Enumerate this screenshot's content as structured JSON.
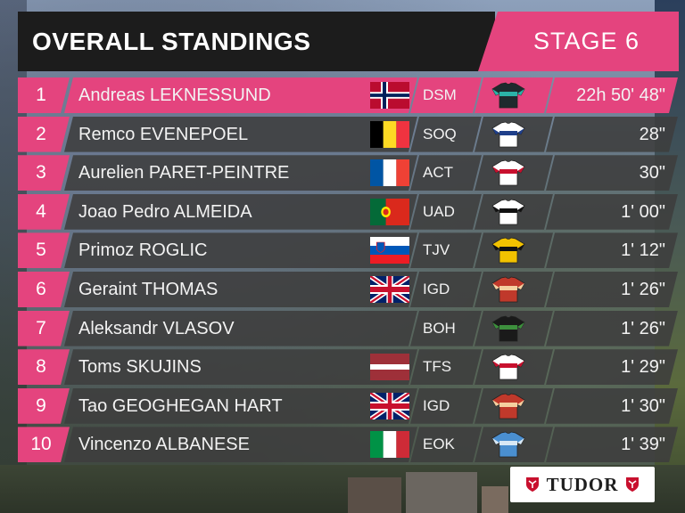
{
  "header": {
    "title": "OVERALL STANDINGS",
    "stage": "STAGE 6"
  },
  "standings": [
    {
      "pos": "1",
      "name": "Andreas LEKNESSUND",
      "flag": "norway-flag",
      "team": "DSM",
      "jersey": "dsm-jersey",
      "time": "22h 50' 48\""
    },
    {
      "pos": "2",
      "name": "Remco EVENEPOEL",
      "flag": "belgium-flag",
      "team": "SOQ",
      "jersey": "soq-jersey",
      "time": "28\""
    },
    {
      "pos": "3",
      "name": "Aurelien PARET-PEINTRE",
      "flag": "france-flag",
      "team": "ACT",
      "jersey": "act-jersey",
      "time": "30\""
    },
    {
      "pos": "4",
      "name": "Joao Pedro ALMEIDA",
      "flag": "portugal-flag",
      "team": "UAD",
      "jersey": "uad-jersey",
      "time": "1' 00\""
    },
    {
      "pos": "5",
      "name": "Primoz ROGLIC",
      "flag": "slovenia-flag",
      "team": "TJV",
      "jersey": "tjv-jersey",
      "time": "1' 12\""
    },
    {
      "pos": "6",
      "name": "Geraint THOMAS",
      "flag": "uk-flag",
      "team": "IGD",
      "jersey": "igd-jersey",
      "time": "1' 26\""
    },
    {
      "pos": "7",
      "name": "Aleksandr VLASOV",
      "flag": "",
      "team": "BOH",
      "jersey": "boh-jersey",
      "time": "1' 26\""
    },
    {
      "pos": "8",
      "name": "Toms SKUJINS",
      "flag": "latvia-flag",
      "team": "TFS",
      "jersey": "tfs-jersey",
      "time": "1' 29\""
    },
    {
      "pos": "9",
      "name": "Tao GEOGHEGAN HART",
      "flag": "uk-flag",
      "team": "IGD",
      "jersey": "igd-jersey",
      "time": "1' 30\""
    },
    {
      "pos": "10",
      "name": "Vincenzo ALBANESE",
      "flag": "italy-flag",
      "team": "EOK",
      "jersey": "eok-jersey",
      "time": "1' 39\""
    }
  ],
  "sponsor": {
    "name": "TUDOR",
    "icon": "tudor-shield-icon"
  },
  "colors": {
    "accent": "#e4447e",
    "header": "#1c1c1c",
    "row": "#3e3e3e"
  }
}
